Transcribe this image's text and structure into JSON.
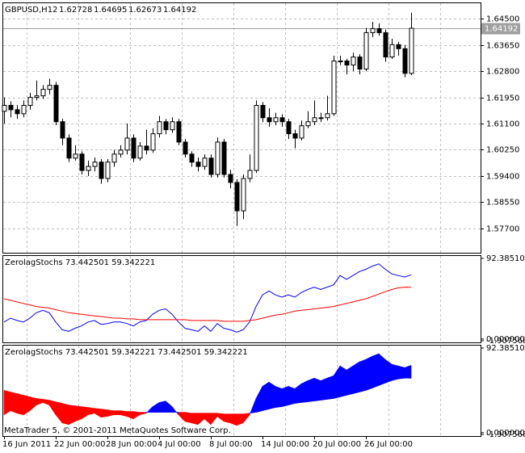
{
  "chart_data": {
    "type": "candlestick",
    "title": "GBPUSD,H12",
    "ohlc_header": [
      1.62728,
      1.64695,
      1.62673,
      1.64192
    ],
    "open": [
      1.615,
      1.6169,
      1.6155,
      1.6142,
      1.6169,
      1.6195,
      1.62,
      1.6221,
      1.6234,
      1.6116,
      1.6063,
      1.5998,
      1.6011,
      1.5958,
      1.5971,
      1.5985,
      1.5932,
      1.5985,
      1.6011,
      1.6024,
      1.6063,
      1.5998,
      1.6037,
      1.6024,
      1.6077,
      1.6116,
      1.609,
      1.6116,
      1.605,
      1.6011,
      1.5985,
      1.5971,
      1.5998,
      1.5945,
      1.605,
      1.5945,
      1.5919,
      1.5827,
      1.5932,
      1.5958,
      1.6169,
      1.6129,
      1.6116,
      1.6129,
      1.6116,
      1.6077,
      1.6063,
      1.6103,
      1.6116,
      1.6129,
      1.6129,
      1.6142,
      1.6313,
      1.6313,
      1.63,
      1.6326,
      1.6287,
      1.6405,
      1.6418,
      1.6405,
      1.6326,
      1.6366,
      1.6353,
      1.62728
    ],
    "high": [
      1.6195,
      1.6182,
      1.617,
      1.6185,
      1.621,
      1.625,
      1.6235,
      1.6255,
      1.6245,
      1.6125,
      1.6075,
      1.604,
      1.602,
      1.599,
      1.6,
      1.5995,
      1.5995,
      1.6025,
      1.604,
      1.611,
      1.6075,
      1.605,
      1.609,
      1.6095,
      1.6135,
      1.6125,
      1.613,
      1.6125,
      1.606,
      1.602,
      1.6,
      1.601,
      1.601,
      1.6065,
      1.606,
      1.596,
      1.593,
      1.5945,
      1.601,
      1.6185,
      1.618,
      1.616,
      1.6145,
      1.614,
      1.6125,
      1.609,
      1.612,
      1.615,
      1.6185,
      1.6145,
      1.62,
      1.633,
      1.633,
      1.632,
      1.634,
      1.6335,
      1.642,
      1.644,
      1.6435,
      1.6415,
      1.6385,
      1.6375,
      1.6365,
      1.64695
    ],
    "low": [
      1.611,
      1.613,
      1.6125,
      1.613,
      1.6155,
      1.6185,
      1.619,
      1.6205,
      1.6105,
      1.604,
      1.5985,
      1.599,
      1.5945,
      1.594,
      1.5955,
      1.5915,
      1.592,
      1.597,
      1.6,
      1.601,
      1.5985,
      1.599,
      1.601,
      1.6015,
      1.6065,
      1.6075,
      1.608,
      1.604,
      1.6,
      1.597,
      1.5955,
      1.596,
      1.5935,
      1.5935,
      1.5935,
      1.59,
      1.5778,
      1.58,
      1.592,
      1.595,
      1.6115,
      1.61,
      1.6105,
      1.61,
      1.606,
      1.603,
      1.6055,
      1.6095,
      1.6105,
      1.6115,
      1.612,
      1.6135,
      1.63,
      1.627,
      1.628,
      1.627,
      1.628,
      1.639,
      1.6395,
      1.631,
      1.632,
      1.633,
      1.626,
      1.62673
    ],
    "close": [
      1.6169,
      1.6155,
      1.6142,
      1.6169,
      1.6195,
      1.62,
      1.6221,
      1.6234,
      1.6116,
      1.6063,
      1.5998,
      1.6011,
      1.5958,
      1.5971,
      1.5985,
      1.5932,
      1.5985,
      1.6011,
      1.6024,
      1.6063,
      1.5998,
      1.6037,
      1.6024,
      1.6077,
      1.6116,
      1.609,
      1.6116,
      1.605,
      1.6011,
      1.5985,
      1.5971,
      1.5998,
      1.5945,
      1.605,
      1.5945,
      1.5919,
      1.5827,
      1.5932,
      1.5958,
      1.6169,
      1.6129,
      1.6116,
      1.6129,
      1.6116,
      1.6077,
      1.6063,
      1.6103,
      1.6116,
      1.6129,
      1.6129,
      1.6142,
      1.6313,
      1.6313,
      1.63,
      1.6326,
      1.6287,
      1.6405,
      1.6418,
      1.6405,
      1.6326,
      1.6366,
      1.6353,
      1.6273,
      1.64192
    ],
    "ylim": [
      1.5691,
      1.6503
    ],
    "yticks": [
      {
        "value": 1.645,
        "label": "1.64500"
      },
      {
        "value": 1.6365,
        "label": "1.63650"
      },
      {
        "value": 1.628,
        "label": "1.62800"
      },
      {
        "value": 1.6195,
        "label": "1.61950"
      },
      {
        "value": 1.611,
        "label": "1.61100"
      },
      {
        "value": 1.6025,
        "label": "1.60250"
      },
      {
        "value": 1.594,
        "label": "1.59400"
      },
      {
        "value": 1.5855,
        "label": "1.58550"
      },
      {
        "value": 1.577,
        "label": "1.57700"
      }
    ],
    "grid": true,
    "xticks": [
      {
        "value": 0,
        "label": "16 Jun 2011"
      },
      {
        "value": 8,
        "label": "22 Jun 00:00"
      },
      {
        "value": 16,
        "label": "28 Jun 00:00"
      },
      {
        "value": 24,
        "label": "4 Jul 00:00"
      },
      {
        "value": 32,
        "label": "8 Jul 00:00"
      },
      {
        "value": 40,
        "label": "14 Jul 00:00"
      },
      {
        "value": 48,
        "label": "20 Jul 00:00"
      },
      {
        "value": 56,
        "label": "26 Jul 00:00"
      }
    ],
    "series": [
      {
        "color": "#0000ff",
        "values": [
          19.5,
          24.0,
          21.3,
          19.5,
          24.0,
          30.2,
          32.9,
          30.2,
          19.5,
          10.7,
          8.9,
          12.4,
          15.1,
          19.5,
          21.3,
          16.9,
          17.8,
          19.5,
          19.5,
          17.8,
          15.1,
          19.5,
          21.3,
          28.4,
          32.9,
          34.6,
          28.4,
          19.5,
          12.4,
          10.7,
          8.9,
          15.1,
          8.9,
          17.8,
          12.4,
          10.7,
          8.0,
          10.7,
          19.5,
          37.3,
          50.6,
          55.1,
          50.6,
          48.0,
          50.6,
          48.0,
          53.3,
          56.8,
          59.5,
          56.8,
          59.5,
          62.2,
          72.8,
          68.4,
          72.8,
          77.3,
          79.9,
          83.5,
          86.1,
          79.9,
          74.6,
          72.8,
          71.0,
          73.442501
        ]
      },
      {
        "color": "#ff0000",
        "values": [
          46.2,
          44.4,
          42.6,
          40.8,
          39.1,
          37.3,
          36.4,
          35.5,
          33.7,
          32.0,
          30.2,
          29.3,
          28.4,
          27.5,
          26.6,
          25.8,
          24.9,
          24.0,
          24.0,
          23.1,
          23.1,
          22.2,
          22.2,
          22.2,
          22.2,
          22.2,
          22.2,
          22.2,
          22.2,
          21.3,
          21.3,
          21.3,
          21.3,
          21.3,
          20.4,
          20.4,
          20.4,
          20.4,
          21.3,
          22.2,
          24.0,
          25.8,
          27.5,
          28.4,
          30.2,
          32.0,
          32.9,
          33.7,
          34.6,
          35.5,
          36.4,
          37.3,
          39.1,
          40.8,
          42.6,
          44.4,
          46.2,
          48.8,
          51.5,
          54.2,
          56.8,
          58.6,
          59.5,
          59.342221
        ]
      }
    ],
    "panels": [
      {
        "type": "line",
        "title": "ZerolagStochs 73.442501 59.342221",
        "ylim": [
          -1.907568,
          92.385103
        ],
        "yticks": [
          92.385103,
          {
            "value": 0,
            "label": "0.000000"
          },
          {
            "value": -1.907568,
            "label": "-1.907568"
          }
        ]
      },
      {
        "type": "filled",
        "title": "ZerolagStochs 73.442501 59.342221 73.442501 59.342221",
        "ylim": [
          -1.907568,
          92.385103
        ],
        "yticks": [
          92.385103,
          {
            "value": 0,
            "label": "0.000000"
          },
          {
            "value": -1.907568,
            "label": "-1.907568"
          }
        ]
      }
    ],
    "footer": "MetaTrader 5, © 2001-2011 MetaQuotes Software Corp."
  }
}
